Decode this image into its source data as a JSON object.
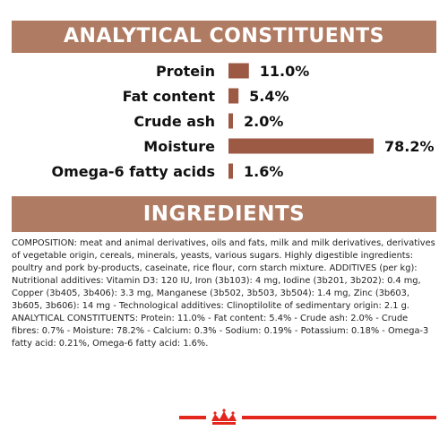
{
  "headings": {
    "analytical": "ANALYTICAL CONSTITUENTS",
    "ingredients": "INGREDIENTS"
  },
  "colors": {
    "banner": "#b07b63",
    "bar": "#9c5a45",
    "accent_red": "#e3271e"
  },
  "chart_data": {
    "type": "bar",
    "orientation": "horizontal",
    "title": "",
    "xlabel": "",
    "ylabel": "",
    "categories": [
      "Protein",
      "Fat content",
      "Crude ash",
      "Moisture",
      "Omega-6 fatty acids"
    ],
    "values": [
      11.0,
      5.4,
      2.0,
      78.2,
      1.6
    ],
    "value_labels": [
      "11.0%",
      "5.4%",
      "2.0%",
      "78.2%",
      "1.6%"
    ],
    "unit": "%",
    "xlim": [
      0,
      78.2
    ],
    "grid": false,
    "legend": "none"
  },
  "composition_text": "COMPOSITION: meat and animal derivatives, oils and fats, milk and milk derivatives, derivatives of vegetable origin, cereals, minerals, yeasts, various sugars. Highly digestible ingredients: poultry and pork by-products, caseinate, rice flour, corn starch mixture. ADDITIVES (per kg): Nutritional additives: Vitamin D3: 120 IU, Iron (3b103): 4 mg, Iodine (3b201, 3b202): 0.4 mg, Copper (3b405, 3b406): 3.3 mg, Manganese (3b502, 3b503, 3b504): 1.4 mg, Zinc (3b603, 3b605, 3b606): 14 mg - Technological additives: Clinoptilolite of sedimentary origin: 2.1 g. ANALYTICAL CONSTITUENTS: Protein: 11.0% - Fat content: 5.4% - Crude ash: 2.0% - Crude fibres: 0.7% - Moisture: 78.2% - Calcium: 0.3% - Sodium: 0.19% - Potassium: 0.18% - Omega-3 fatty acid: 0.21%, Omega-6 fatty acid: 1.6%.",
  "logo": {
    "name": "crown-logo-icon"
  }
}
